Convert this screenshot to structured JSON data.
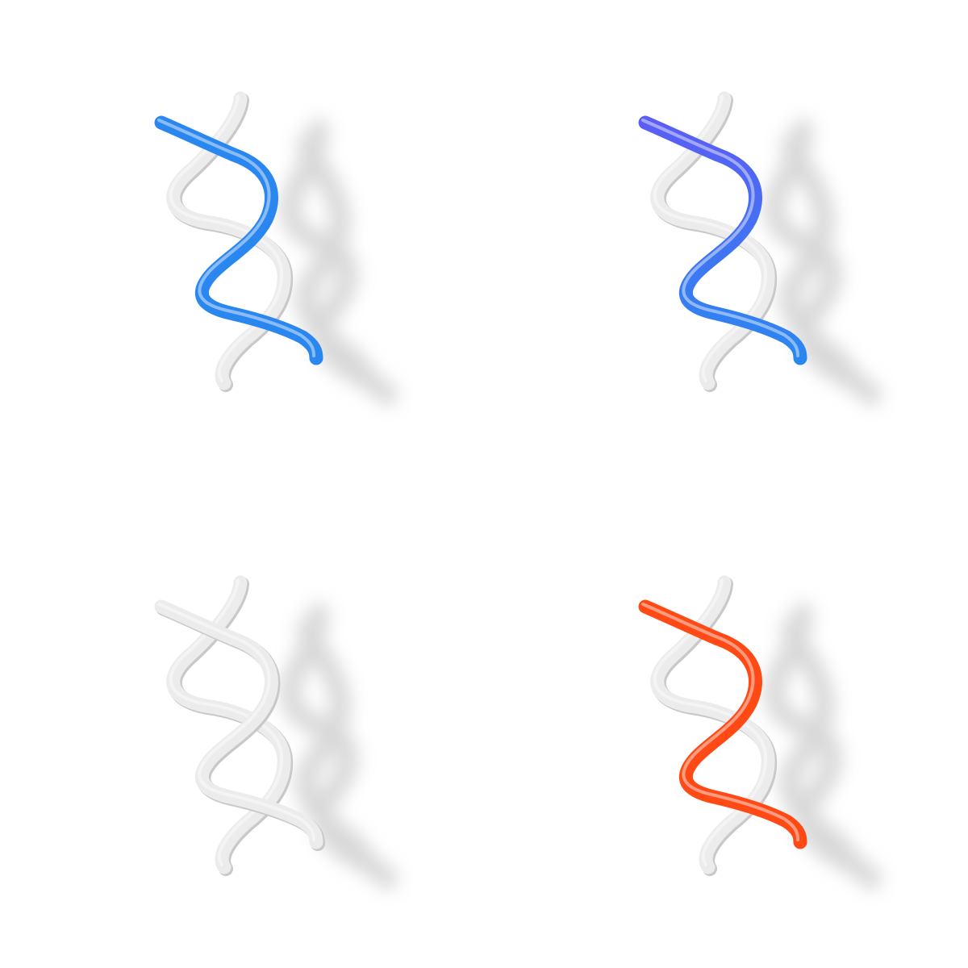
{
  "icons": [
    {
      "name": "dna-helix-icon",
      "variant": "blue",
      "strand_a": "#ececec",
      "strand_b": "#2b87f0",
      "strand_b_end": "#2b87f0",
      "highlighted": true
    },
    {
      "name": "dna-helix-icon",
      "variant": "gradient",
      "strand_a": "#ececec",
      "strand_b": "#5a5ef5",
      "strand_b_end": "#2b87f0",
      "highlighted": true
    },
    {
      "name": "dna-helix-icon",
      "variant": "white",
      "strand_a": "#ececec",
      "strand_b": "#ececec",
      "strand_b_end": "#ececec",
      "highlighted": false
    },
    {
      "name": "dna-helix-icon",
      "variant": "orange",
      "strand_a": "#ececec",
      "strand_b": "#ff4a16",
      "strand_b_end": "#ff4a16",
      "highlighted": true
    }
  ]
}
